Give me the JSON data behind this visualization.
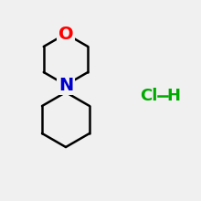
{
  "background_color": "#f0f0f0",
  "bond_color": "#000000",
  "o_color": "#ff0000",
  "n_color": "#0000cc",
  "hcl_color": "#00aa00",
  "line_width": 1.8,
  "hcl_text": "Cl",
  "h_text": "H",
  "o_text": "O",
  "n_text": "N",
  "font_size_atom": 14,
  "font_size_hcl": 13
}
